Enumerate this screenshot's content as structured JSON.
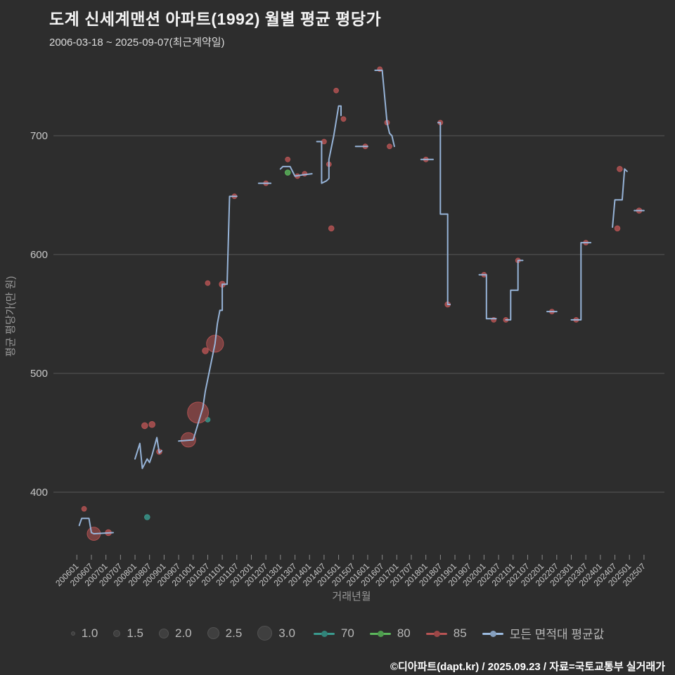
{
  "header": {
    "title": "도계 신세계맨션 아파트(1992) 월별 평균 평당가",
    "subtitle": "2006-03-18 ~ 2025-09-07(최근계약일)"
  },
  "footer": {
    "credit": "©디아파트(dapt.kr) / 2025.09.23 / 자료=국토교통부 실거래가"
  },
  "chart_data": {
    "type": "line+scatter",
    "title": "도계 신세계맨션 아파트(1992) 월별 평균 평당가",
    "xlabel": "거래년월",
    "ylabel": "평균 평당가(만 원)",
    "y_ticks": [
      400,
      500,
      600,
      700
    ],
    "ylim": [
      345,
      765
    ],
    "grid": true,
    "legend_position": "bottom",
    "x_ticks": [
      "200601",
      "200607",
      "200701",
      "200707",
      "200801",
      "200807",
      "200901",
      "200907",
      "201001",
      "201007",
      "201101",
      "201107",
      "201201",
      "201207",
      "201301",
      "201307",
      "201401",
      "201407",
      "201501",
      "201507",
      "201601",
      "201607",
      "201701",
      "201707",
      "201801",
      "201807",
      "201901",
      "201907",
      "202001",
      "202007",
      "202101",
      "202107",
      "202201",
      "202207",
      "202301",
      "202307",
      "202401",
      "202407",
      "202501",
      "202507"
    ],
    "size_legend": [
      "1.0",
      "1.5",
      "2.0",
      "2.5",
      "3.0"
    ],
    "series": [
      {
        "name": "70",
        "type": "scatter",
        "color": "#3a9a8e",
        "points": [
          {
            "x": "200806",
            "y": 379,
            "size": 1.4
          },
          {
            "x": "201007",
            "y": 461,
            "size": 1.3
          }
        ]
      },
      {
        "name": "80",
        "type": "scatter",
        "color": "#5cb85c",
        "points": [
          {
            "x": "201304",
            "y": 669,
            "size": 1.4
          }
        ]
      },
      {
        "name": "85",
        "type": "scatter",
        "color": "#b85454",
        "points": [
          {
            "x": "200604",
            "y": 386,
            "size": 1.3
          },
          {
            "x": "200608",
            "y": 365,
            "size": 2.6
          },
          {
            "x": "200702",
            "y": 366,
            "size": 1.5
          },
          {
            "x": "200805",
            "y": 456,
            "size": 1.5
          },
          {
            "x": "200808",
            "y": 457,
            "size": 1.5
          },
          {
            "x": "200811",
            "y": 434,
            "size": 1.4
          },
          {
            "x": "200911",
            "y": 444,
            "size": 2.8
          },
          {
            "x": "201003",
            "y": 467,
            "size": 3.8
          },
          {
            "x": "201006",
            "y": 519,
            "size": 1.5
          },
          {
            "x": "201007",
            "y": 576,
            "size": 1.3
          },
          {
            "x": "201010",
            "y": 525,
            "size": 3.2
          },
          {
            "x": "201101",
            "y": 575,
            "size": 1.5
          },
          {
            "x": "201106",
            "y": 649,
            "size": 1.3
          },
          {
            "x": "201207",
            "y": 660,
            "size": 1.3
          },
          {
            "x": "201304",
            "y": 680,
            "size": 1.3
          },
          {
            "x": "201308",
            "y": 666,
            "size": 1.3
          },
          {
            "x": "201311",
            "y": 668,
            "size": 1.3
          },
          {
            "x": "201407",
            "y": 695,
            "size": 1.3
          },
          {
            "x": "201409",
            "y": 676,
            "size": 1.3
          },
          {
            "x": "201410",
            "y": 622,
            "size": 1.4
          },
          {
            "x": "201412",
            "y": 738,
            "size": 1.3
          },
          {
            "x": "201503",
            "y": 714,
            "size": 1.3
          },
          {
            "x": "201512",
            "y": 691,
            "size": 1.3
          },
          {
            "x": "201606",
            "y": 756,
            "size": 1.3
          },
          {
            "x": "201609",
            "y": 711,
            "size": 1.3
          },
          {
            "x": "201610",
            "y": 691,
            "size": 1.3
          },
          {
            "x": "201801",
            "y": 680,
            "size": 1.3
          },
          {
            "x": "201807",
            "y": 711,
            "size": 1.3
          },
          {
            "x": "201810",
            "y": 558,
            "size": 1.4
          },
          {
            "x": "202001",
            "y": 583,
            "size": 1.3
          },
          {
            "x": "202005",
            "y": 545,
            "size": 1.3
          },
          {
            "x": "202010",
            "y": 545,
            "size": 1.3
          },
          {
            "x": "202103",
            "y": 595,
            "size": 1.3
          },
          {
            "x": "202205",
            "y": 552,
            "size": 1.3
          },
          {
            "x": "202303",
            "y": 545,
            "size": 1.3
          },
          {
            "x": "202307",
            "y": 610,
            "size": 1.3
          },
          {
            "x": "202408",
            "y": 622,
            "size": 1.4
          },
          {
            "x": "202409",
            "y": 672,
            "size": 1.4
          },
          {
            "x": "202505",
            "y": 637,
            "size": 1.4
          }
        ]
      },
      {
        "name": "모든 면적대 평균값",
        "type": "line",
        "color": "#9cbbe0",
        "segments": [
          [
            [
              "200602",
              372
            ],
            [
              "200603",
              378
            ],
            [
              "200606",
              378
            ],
            [
              "200607",
              366
            ],
            [
              "200608",
              365
            ],
            [
              "200704",
              366
            ]
          ],
          [
            [
              "200801",
              428
            ],
            [
              "200803",
              441
            ],
            [
              "200804",
              420
            ],
            [
              "200806",
              428
            ],
            [
              "200807",
              425
            ],
            [
              "200808",
              431
            ],
            [
              "200810",
              446
            ],
            [
              "200811",
              433
            ],
            [
              "200812",
              435
            ]
          ],
          [
            [
              "200907",
              443
            ],
            [
              "201001",
              444
            ],
            [
              "201005",
              471
            ],
            [
              "201006",
              485
            ],
            [
              "201008",
              505
            ],
            [
              "201010",
              525
            ],
            [
              "201011",
              542
            ],
            [
              "201012",
              553
            ],
            [
              "201101",
              553
            ],
            [
              "201101",
              575
            ],
            [
              "201103",
              575
            ],
            [
              "201104",
              649
            ],
            [
              "201107",
              649
            ]
          ],
          [
            [
              "201204",
              660
            ],
            [
              "201209",
              660
            ]
          ],
          [
            [
              "201301",
              672
            ],
            [
              "201302",
              674
            ],
            [
              "201305",
              674
            ],
            [
              "201307",
              666
            ],
            [
              "201310",
              667
            ],
            [
              "201402",
              668
            ]
          ],
          [
            [
              "201404",
              695
            ],
            [
              "201406",
              695
            ],
            [
              "201406",
              660
            ],
            [
              "201408",
              662
            ],
            [
              "201409",
              664
            ],
            [
              "201409",
              680
            ],
            [
              "201411",
              700
            ],
            [
              "201501",
              725
            ],
            [
              "201502",
              725
            ],
            [
              "201502",
              717
            ]
          ],
          [
            [
              "201508",
              691
            ],
            [
              "201601",
              691
            ]
          ],
          [
            [
              "201604",
              755
            ],
            [
              "201607",
              755
            ],
            [
              "201609",
              711
            ],
            [
              "201610",
              702
            ],
            [
              "201611",
              700
            ],
            [
              "201612",
              691
            ]
          ],
          [
            [
              "201711",
              680
            ],
            [
              "201804",
              680
            ]
          ],
          [
            [
              "201806",
              711
            ],
            [
              "201807",
              711
            ],
            [
              "201807",
              634
            ],
            [
              "201810",
              634
            ],
            [
              "201810",
              558
            ],
            [
              "201811",
              558
            ]
          ],
          [
            [
              "201911",
              583
            ],
            [
              "202002",
              583
            ],
            [
              "202002",
              546
            ],
            [
              "202006",
              546
            ]
          ],
          [
            [
              "202010",
              545
            ],
            [
              "202012",
              545
            ],
            [
              "202012",
              570
            ],
            [
              "202103",
              570
            ],
            [
              "202103",
              595
            ],
            [
              "202105",
              595
            ]
          ],
          [
            [
              "202203",
              552
            ],
            [
              "202207",
              552
            ]
          ],
          [
            [
              "202301",
              545
            ],
            [
              "202305",
              545
            ],
            [
              "202305",
              610
            ],
            [
              "202309",
              610
            ]
          ],
          [
            [
              "202406",
              623
            ],
            [
              "202407",
              646
            ],
            [
              "202410",
              646
            ],
            [
              "202411",
              672
            ],
            [
              "202412",
              670
            ]
          ],
          [
            [
              "202503",
              637
            ],
            [
              "202507",
              637
            ]
          ]
        ]
      }
    ]
  },
  "colors": {
    "background": "#2d2d2d",
    "grid": "#7a7a7a",
    "tick_text": "#c8c8c8",
    "axis_title": "#9a9a9a",
    "avg_line": "#9cbbe0",
    "series_70": "#3a9a8e",
    "series_80": "#5cb85c",
    "series_85": "#b85454"
  }
}
